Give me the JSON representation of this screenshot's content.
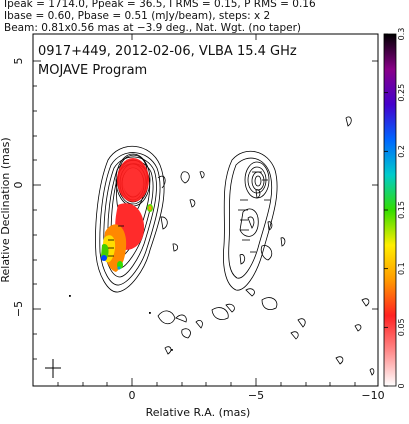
{
  "header": {
    "line1": "Ipeak = 1714.0, Ppeak = 36.5, I RMS = 0.15, P RMS = 0.16",
    "line2": "Ibase = 0.60, Pbase = 0.51 (mJy/beam), steps: x 2",
    "line3": "Beam: 0.81x0.56 mas at −3.9 deg., Nat. Wgt. (no taper)"
  },
  "plot": {
    "title_line1": "0917+449, 2012-02-06, VLBA 15.4 GHz",
    "title_line2": "MOJAVE Program",
    "xlabel": "Relative R.A. (mas)",
    "ylabel": "Relative Declination (mas)",
    "x_ticks": [
      "0",
      "−5",
      "−10"
    ],
    "y_ticks": [
      "5",
      "0",
      "−5"
    ]
  },
  "colorbar": {
    "ticks": [
      "0",
      "0.05",
      "0.1",
      "0.15",
      "0.2",
      "0.25",
      "0.3"
    ],
    "colors": [
      "#ffffff",
      "#ff8a8a",
      "#ff2222",
      "#ff9900",
      "#ffee00",
      "#33dd00",
      "#00cccc",
      "#0066ff",
      "#4400cc",
      "#880088",
      "#000000"
    ]
  }
}
